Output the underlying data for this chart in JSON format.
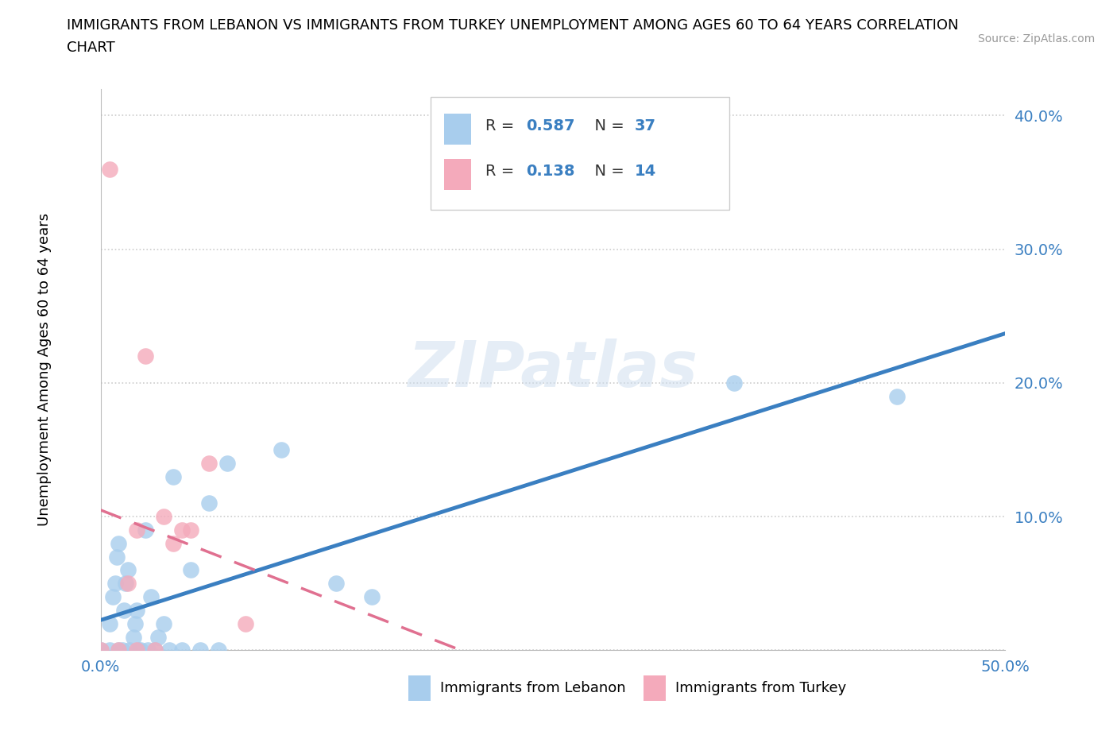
{
  "title_line1": "IMMIGRANTS FROM LEBANON VS IMMIGRANTS FROM TURKEY UNEMPLOYMENT AMONG AGES 60 TO 64 YEARS CORRELATION",
  "title_line2": "CHART",
  "source": "Source: ZipAtlas.com",
  "ylabel": "Unemployment Among Ages 60 to 64 years",
  "xlim": [
    0.0,
    0.5
  ],
  "ylim": [
    0.0,
    0.42
  ],
  "xticks": [
    0.0,
    0.1,
    0.2,
    0.3,
    0.4,
    0.5
  ],
  "yticks": [
    0.0,
    0.1,
    0.2,
    0.3,
    0.4
  ],
  "xticklabels": [
    "0.0%",
    "",
    "",
    "",
    "",
    "50.0%"
  ],
  "yticklabels": [
    "",
    "10.0%",
    "20.0%",
    "30.0%",
    "40.0%"
  ],
  "watermark": "ZIPatlas",
  "color_lebanon": "#A8CDED",
  "color_turkey": "#F4AABB",
  "trendline_lebanon_color": "#3A7FC1",
  "trendline_turkey_color": "#E07090",
  "background": "#FFFFFF",
  "grid_color": "#CCCCCC",
  "lebanon_x": [
    0.0,
    0.005,
    0.005,
    0.007,
    0.008,
    0.009,
    0.01,
    0.01,
    0.012,
    0.013,
    0.014,
    0.015,
    0.016,
    0.018,
    0.019,
    0.02,
    0.021,
    0.022,
    0.025,
    0.026,
    0.028,
    0.03,
    0.032,
    0.035,
    0.038,
    0.04,
    0.045,
    0.05,
    0.055,
    0.06,
    0.065,
    0.07,
    0.1,
    0.13,
    0.15,
    0.35,
    0.44
  ],
  "lebanon_y": [
    0.0,
    0.0,
    0.02,
    0.04,
    0.05,
    0.07,
    0.0,
    0.08,
    0.0,
    0.03,
    0.05,
    0.06,
    0.0,
    0.01,
    0.02,
    0.03,
    0.0,
    0.0,
    0.09,
    0.0,
    0.04,
    0.0,
    0.01,
    0.02,
    0.0,
    0.13,
    0.0,
    0.06,
    0.0,
    0.11,
    0.0,
    0.14,
    0.15,
    0.05,
    0.04,
    0.2,
    0.19
  ],
  "turkey_x": [
    0.0,
    0.005,
    0.01,
    0.015,
    0.02,
    0.02,
    0.025,
    0.03,
    0.035,
    0.04,
    0.045,
    0.05,
    0.06,
    0.08
  ],
  "turkey_y": [
    0.0,
    0.36,
    0.0,
    0.05,
    0.0,
    0.09,
    0.22,
    0.0,
    0.1,
    0.08,
    0.09,
    0.09,
    0.14,
    0.02
  ],
  "legend_r1_label": "R = ",
  "legend_r1_val": "0.587",
  "legend_n1_label": "N = ",
  "legend_n1_val": "37",
  "legend_r2_label": "R = ",
  "legend_r2_val": "0.138",
  "legend_n2_label": "N = ",
  "legend_n2_val": "14",
  "legend_text_color": "#333333",
  "legend_val_color": "#3A7FC1",
  "bottom_label1": "Immigrants from Lebanon",
  "bottom_label2": "Immigrants from Turkey"
}
